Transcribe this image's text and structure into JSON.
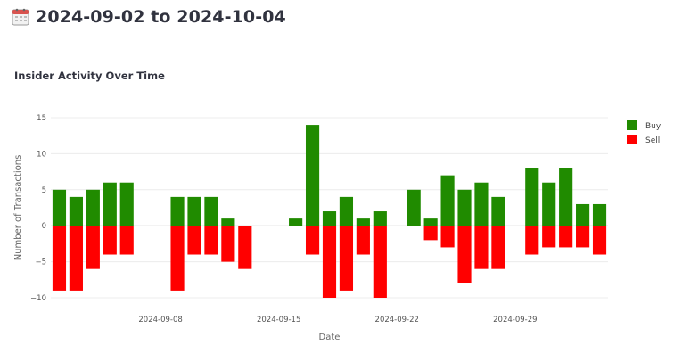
{
  "header": {
    "title": "2024-09-02 to 2024-10-04",
    "icon": "calendar-icon"
  },
  "chart_data": {
    "type": "bar",
    "title": "Insider Activity Over Time",
    "xlabel": "Date",
    "ylabel": "Number of Transactions",
    "ylim": [
      -10,
      15
    ],
    "xlim": [
      "2024-09-02",
      "2024-10-04"
    ],
    "yticks": [
      15,
      10,
      5,
      0,
      -5,
      -10
    ],
    "xticks": [
      "2024-09-08",
      "2024-09-15",
      "2024-09-22",
      "2024-09-29"
    ],
    "legend_position": "top-right",
    "grid": true,
    "series": [
      {
        "name": "Buy",
        "color": "#208b00",
        "points": [
          [
            "2024-09-02",
            5
          ],
          [
            "2024-09-03",
            4
          ],
          [
            "2024-09-04",
            5
          ],
          [
            "2024-09-05",
            6
          ],
          [
            "2024-09-06",
            6
          ],
          [
            "2024-09-09",
            4
          ],
          [
            "2024-09-10",
            4
          ],
          [
            "2024-09-11",
            4
          ],
          [
            "2024-09-12",
            1
          ],
          [
            "2024-09-13",
            0
          ],
          [
            "2024-09-16",
            1
          ],
          [
            "2024-09-17",
            14
          ],
          [
            "2024-09-18",
            2
          ],
          [
            "2024-09-19",
            4
          ],
          [
            "2024-09-20",
            1
          ],
          [
            "2024-09-21",
            2
          ],
          [
            "2024-09-23",
            5
          ],
          [
            "2024-09-24",
            1
          ],
          [
            "2024-09-25",
            7
          ],
          [
            "2024-09-26",
            5
          ],
          [
            "2024-09-27",
            6
          ],
          [
            "2024-09-28",
            4
          ],
          [
            "2024-09-30",
            8
          ],
          [
            "2024-10-01",
            6
          ],
          [
            "2024-10-02",
            8
          ],
          [
            "2024-10-03",
            3
          ],
          [
            "2024-10-04",
            3
          ]
        ]
      },
      {
        "name": "Sell",
        "color": "#ff0000",
        "points": [
          [
            "2024-09-02",
            -9
          ],
          [
            "2024-09-03",
            -9
          ],
          [
            "2024-09-04",
            -6
          ],
          [
            "2024-09-05",
            -4
          ],
          [
            "2024-09-06",
            -4
          ],
          [
            "2024-09-09",
            -9
          ],
          [
            "2024-09-10",
            -4
          ],
          [
            "2024-09-11",
            -4
          ],
          [
            "2024-09-12",
            -5
          ],
          [
            "2024-09-13",
            -6
          ],
          [
            "2024-09-16",
            0
          ],
          [
            "2024-09-17",
            -4
          ],
          [
            "2024-09-18",
            -10
          ],
          [
            "2024-09-19",
            -9
          ],
          [
            "2024-09-20",
            -4
          ],
          [
            "2024-09-21",
            -10
          ],
          [
            "2024-09-23",
            0
          ],
          [
            "2024-09-24",
            -2
          ],
          [
            "2024-09-25",
            -3
          ],
          [
            "2024-09-26",
            -8
          ],
          [
            "2024-09-27",
            -6
          ],
          [
            "2024-09-28",
            -6
          ],
          [
            "2024-09-30",
            -4
          ],
          [
            "2024-10-01",
            -3
          ],
          [
            "2024-10-02",
            -3
          ],
          [
            "2024-10-03",
            -3
          ],
          [
            "2024-10-04",
            -4
          ]
        ]
      }
    ]
  }
}
